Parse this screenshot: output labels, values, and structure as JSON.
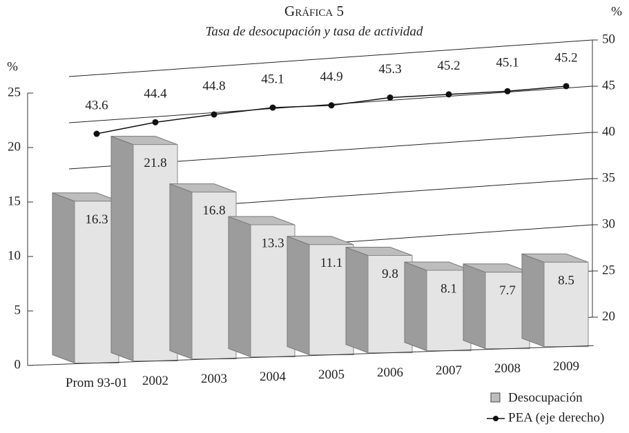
{
  "chart_data": {
    "type": "bar",
    "title": "Gráfica 5",
    "subtitle": "Tasa de desocupación y tasa de actividad",
    "y_unit": "%",
    "y2_unit": "%",
    "categories": [
      "Prom 93-01",
      "2002",
      "2003",
      "2004",
      "2005",
      "2006",
      "2007",
      "2008",
      "2009"
    ],
    "series": [
      {
        "name": "Desocupación",
        "type": "bar",
        "color": "#e4e4e4",
        "values": [
          16.3,
          21.8,
          16.8,
          13.3,
          11.1,
          9.8,
          8.1,
          7.7,
          8.5
        ]
      },
      {
        "name": "PEA (eje derecho)",
        "type": "line",
        "axis": "y2",
        "color": "#111111",
        "values": [
          43.6,
          44.4,
          44.8,
          45.1,
          44.9,
          45.3,
          45.2,
          45.1,
          45.2
        ]
      }
    ],
    "ylim": [
      0,
      25
    ],
    "yticks": [
      0,
      5,
      10,
      15,
      20,
      25
    ],
    "y2lim": [
      20,
      50
    ],
    "y2ticks": [
      20,
      25,
      30,
      35,
      40,
      45,
      50
    ],
    "grid": true
  }
}
